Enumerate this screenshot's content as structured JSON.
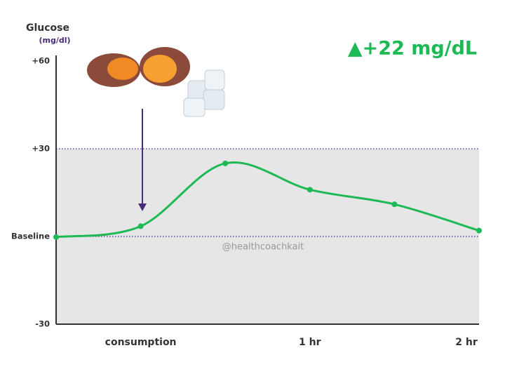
{
  "chart_data": {
    "type": "line",
    "ylabel": "Glucose",
    "yunit": "(mg/dl)",
    "annotation": "▲+22 mg/dL",
    "watermark": "@healthcoachkait",
    "x": [
      -30,
      0,
      30,
      60,
      90,
      120
    ],
    "series": [
      {
        "name": "Glucose",
        "color": "#1db954",
        "values": [
          -0.2,
          3.5,
          25,
          16,
          11,
          2
        ]
      }
    ],
    "xlim": [
      -30,
      120
    ],
    "xticks": [
      {
        "value": 0,
        "label": "consumption"
      },
      {
        "value": 60,
        "label": "1 hr"
      },
      {
        "value": 120,
        "label": "2 hr"
      }
    ],
    "ylim": [
      -30,
      60
    ],
    "yticks": [
      {
        "value": 60,
        "label": "+60"
      },
      {
        "value": 30,
        "label": "+30"
      },
      {
        "value": 0,
        "label": "Baseline"
      },
      {
        "value": -30,
        "label": "-30"
      }
    ],
    "shaded_range": [
      -30,
      30
    ],
    "dotted_lines": [
      30,
      0
    ]
  }
}
